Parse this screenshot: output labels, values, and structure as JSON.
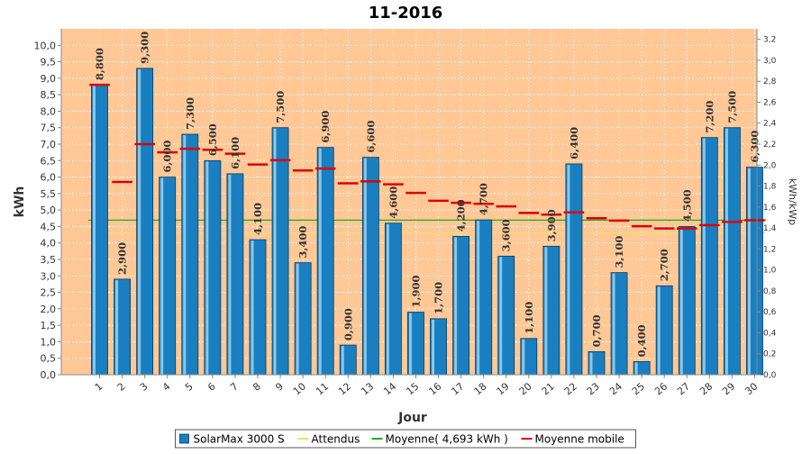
{
  "chart_data": {
    "type": "bar",
    "title": "11-2016",
    "xlabel": "Jour",
    "ylabel": "kWh",
    "y2label": "kWh/kWp",
    "ylim": [
      0,
      10.5
    ],
    "y2lim": [
      0,
      3.3
    ],
    "yticks": [
      "0,0",
      "0,5",
      "1,0",
      "1,5",
      "2,0",
      "2,5",
      "3,0",
      "3,5",
      "4,0",
      "4,5",
      "5,0",
      "5,5",
      "6,0",
      "6,5",
      "7,0",
      "7,5",
      "8,0",
      "8,5",
      "9,0",
      "9,5",
      "10,0"
    ],
    "y2ticks": [
      "0,0",
      "0,2",
      "0,4",
      "0,6",
      "0,8",
      "1,0",
      "1,2",
      "1,4",
      "1,6",
      "1,8",
      "2,0",
      "2,2",
      "2,4",
      "2,6",
      "2,8",
      "3,0",
      "3,2"
    ],
    "categories": [
      "1",
      "2",
      "3",
      "4",
      "5",
      "6",
      "7",
      "8",
      "9",
      "10",
      "11",
      "12",
      "13",
      "14",
      "15",
      "16",
      "17",
      "18",
      "19",
      "20",
      "21",
      "22",
      "23",
      "24",
      "25",
      "26",
      "27",
      "28",
      "29",
      "30"
    ],
    "series": [
      {
        "name": "SolarMax 3000 S",
        "kind": "bar",
        "color": "#1a7fc0",
        "values": [
          8.8,
          2.9,
          9.3,
          6.0,
          7.3,
          6.5,
          6.1,
          4.1,
          7.5,
          3.4,
          6.9,
          0.9,
          6.6,
          4.6,
          1.9,
          1.7,
          4.2,
          4.7,
          3.6,
          1.1,
          3.9,
          6.4,
          0.7,
          3.1,
          0.4,
          2.7,
          4.5,
          7.2,
          7.5,
          6.3
        ],
        "labels": [
          "8,800",
          "2,900",
          "9,300",
          "6,000",
          "7,300",
          "6,500",
          "6,100",
          "4,100",
          "7,500",
          "3,400",
          "6,900",
          "0,900",
          "6,600",
          "4,600",
          "1,900",
          "1,700",
          "4,200",
          "4,700",
          "3,600",
          "1,100",
          "3,900",
          "6,400",
          "0,700",
          "3,100",
          "0,400",
          "2,700",
          "4,500",
          "7,200",
          "7,500",
          "6,300"
        ]
      },
      {
        "name": "Attendus",
        "kind": "line",
        "color": "#e8e070",
        "value": 4.3
      },
      {
        "name": "Moyenne( 4,693 kWh )",
        "kind": "line",
        "color": "#22aa22",
        "value": 4.693
      },
      {
        "name": "Moyenne mobile",
        "kind": "marker",
        "color": "#dd0000",
        "values": [
          8.8,
          5.85,
          7.0,
          6.75,
          6.86,
          6.83,
          6.71,
          6.38,
          6.51,
          6.2,
          6.26,
          5.81,
          5.87,
          5.78,
          5.52,
          5.28,
          5.22,
          5.19,
          5.11,
          4.91,
          4.86,
          4.93,
          4.75,
          4.68,
          4.51,
          4.44,
          4.44,
          4.54,
          4.64,
          4.69
        ]
      }
    ],
    "legend": {
      "position": "bottom",
      "items": [
        {
          "label": "SolarMax 3000 S",
          "color": "#1a7fc0",
          "shape": "box"
        },
        {
          "label": "Attendus",
          "color": "#e8e070",
          "shape": "line"
        },
        {
          "label": "Moyenne( 4,693 kWh )",
          "color": "#22aa22",
          "shape": "line"
        },
        {
          "label": "Moyenne mobile",
          "color": "#dd0000",
          "shape": "line"
        }
      ]
    },
    "plot_background": "#ffc896",
    "grid": true
  }
}
